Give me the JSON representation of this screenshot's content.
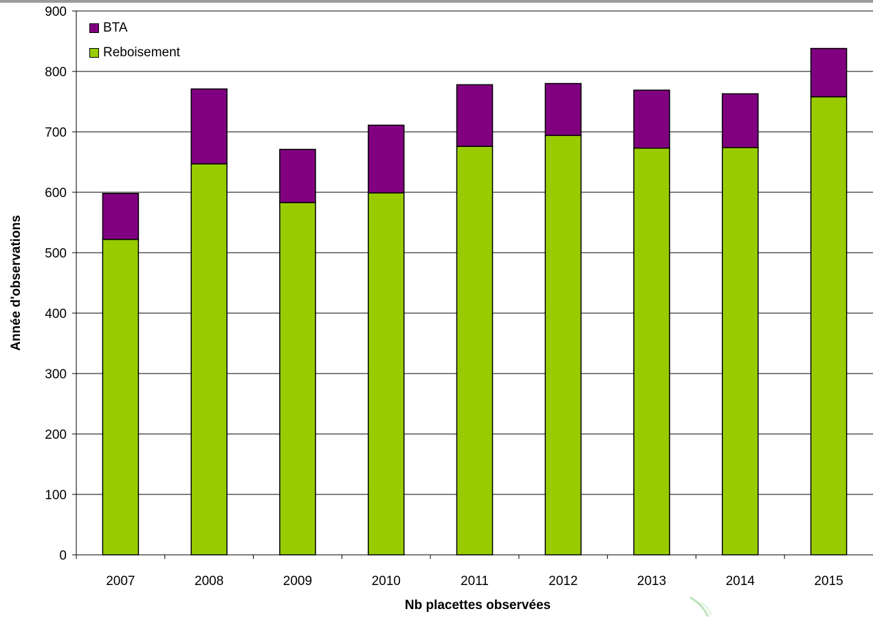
{
  "chart_data": {
    "type": "bar",
    "stacked": true,
    "categories": [
      "2007",
      "2008",
      "2009",
      "2010",
      "2011",
      "2012",
      "2013",
      "2014",
      "2015"
    ],
    "series": [
      {
        "name": "Reboisement",
        "color": "#99CC00",
        "values": [
          522,
          647,
          583,
          599,
          676,
          694,
          673,
          674,
          758
        ]
      },
      {
        "name": "BTA",
        "color": "#800080",
        "values": [
          76,
          124,
          88,
          112,
          102,
          86,
          96,
          89,
          80
        ]
      }
    ],
    "title": "",
    "xlabel": "Nb placettes observées",
    "ylabel": "Année d'observations",
    "ylim": [
      0,
      900
    ],
    "yticks": [
      0,
      100,
      200,
      300,
      400,
      500,
      600,
      700,
      800,
      900
    ],
    "grid": true,
    "legend_position": "top-left"
  }
}
